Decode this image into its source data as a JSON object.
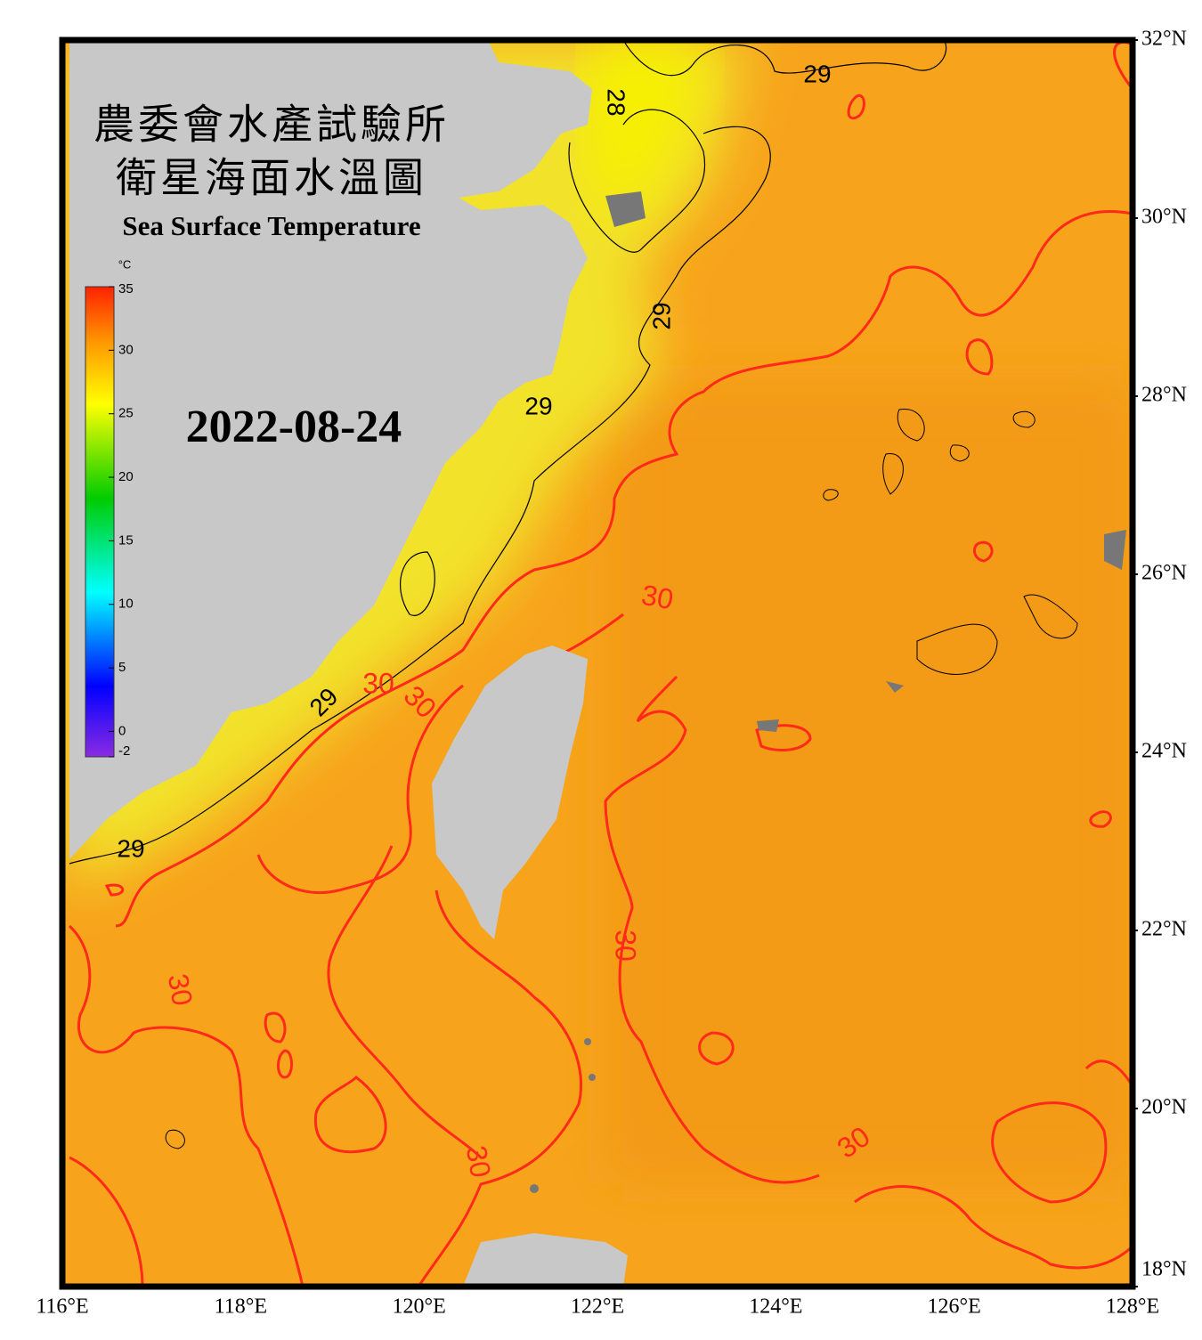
{
  "title_zh_1": "農委會水產試驗所",
  "title_zh_2": "衛星海面水溫圖",
  "title_en": "Sea Surface Temperature",
  "date": "2022-08-24",
  "colorbar": {
    "unit": "°C",
    "range": [
      -2,
      35
    ],
    "ticks": [
      35,
      30,
      25,
      20,
      15,
      10,
      5,
      0,
      -2
    ]
  },
  "map": {
    "xlim": [
      116,
      128
    ],
    "ylim": [
      18,
      32
    ],
    "xticks": [
      {
        "value": 116,
        "label": "116°E"
      },
      {
        "value": 118,
        "label": "118°E"
      },
      {
        "value": 120,
        "label": "120°E"
      },
      {
        "value": 122,
        "label": "122°E"
      },
      {
        "value": 124,
        "label": "124°E"
      },
      {
        "value": 126,
        "label": "126°E"
      },
      {
        "value": 128,
        "label": "128°E"
      }
    ],
    "yticks": [
      {
        "value": 32,
        "label": "32°N"
      },
      {
        "value": 30,
        "label": "30°N"
      },
      {
        "value": 28,
        "label": "28°N"
      },
      {
        "value": 26,
        "label": "26°N"
      },
      {
        "value": 24,
        "label": "24°N"
      },
      {
        "value": 22,
        "label": "22°N"
      },
      {
        "value": 20,
        "label": "20°N"
      },
      {
        "value": 18,
        "label": "18°N"
      }
    ],
    "grid": true,
    "contour_labels": [
      28,
      29,
      29,
      29,
      29,
      29,
      30,
      30,
      30,
      30,
      30,
      30,
      30
    ]
  }
}
